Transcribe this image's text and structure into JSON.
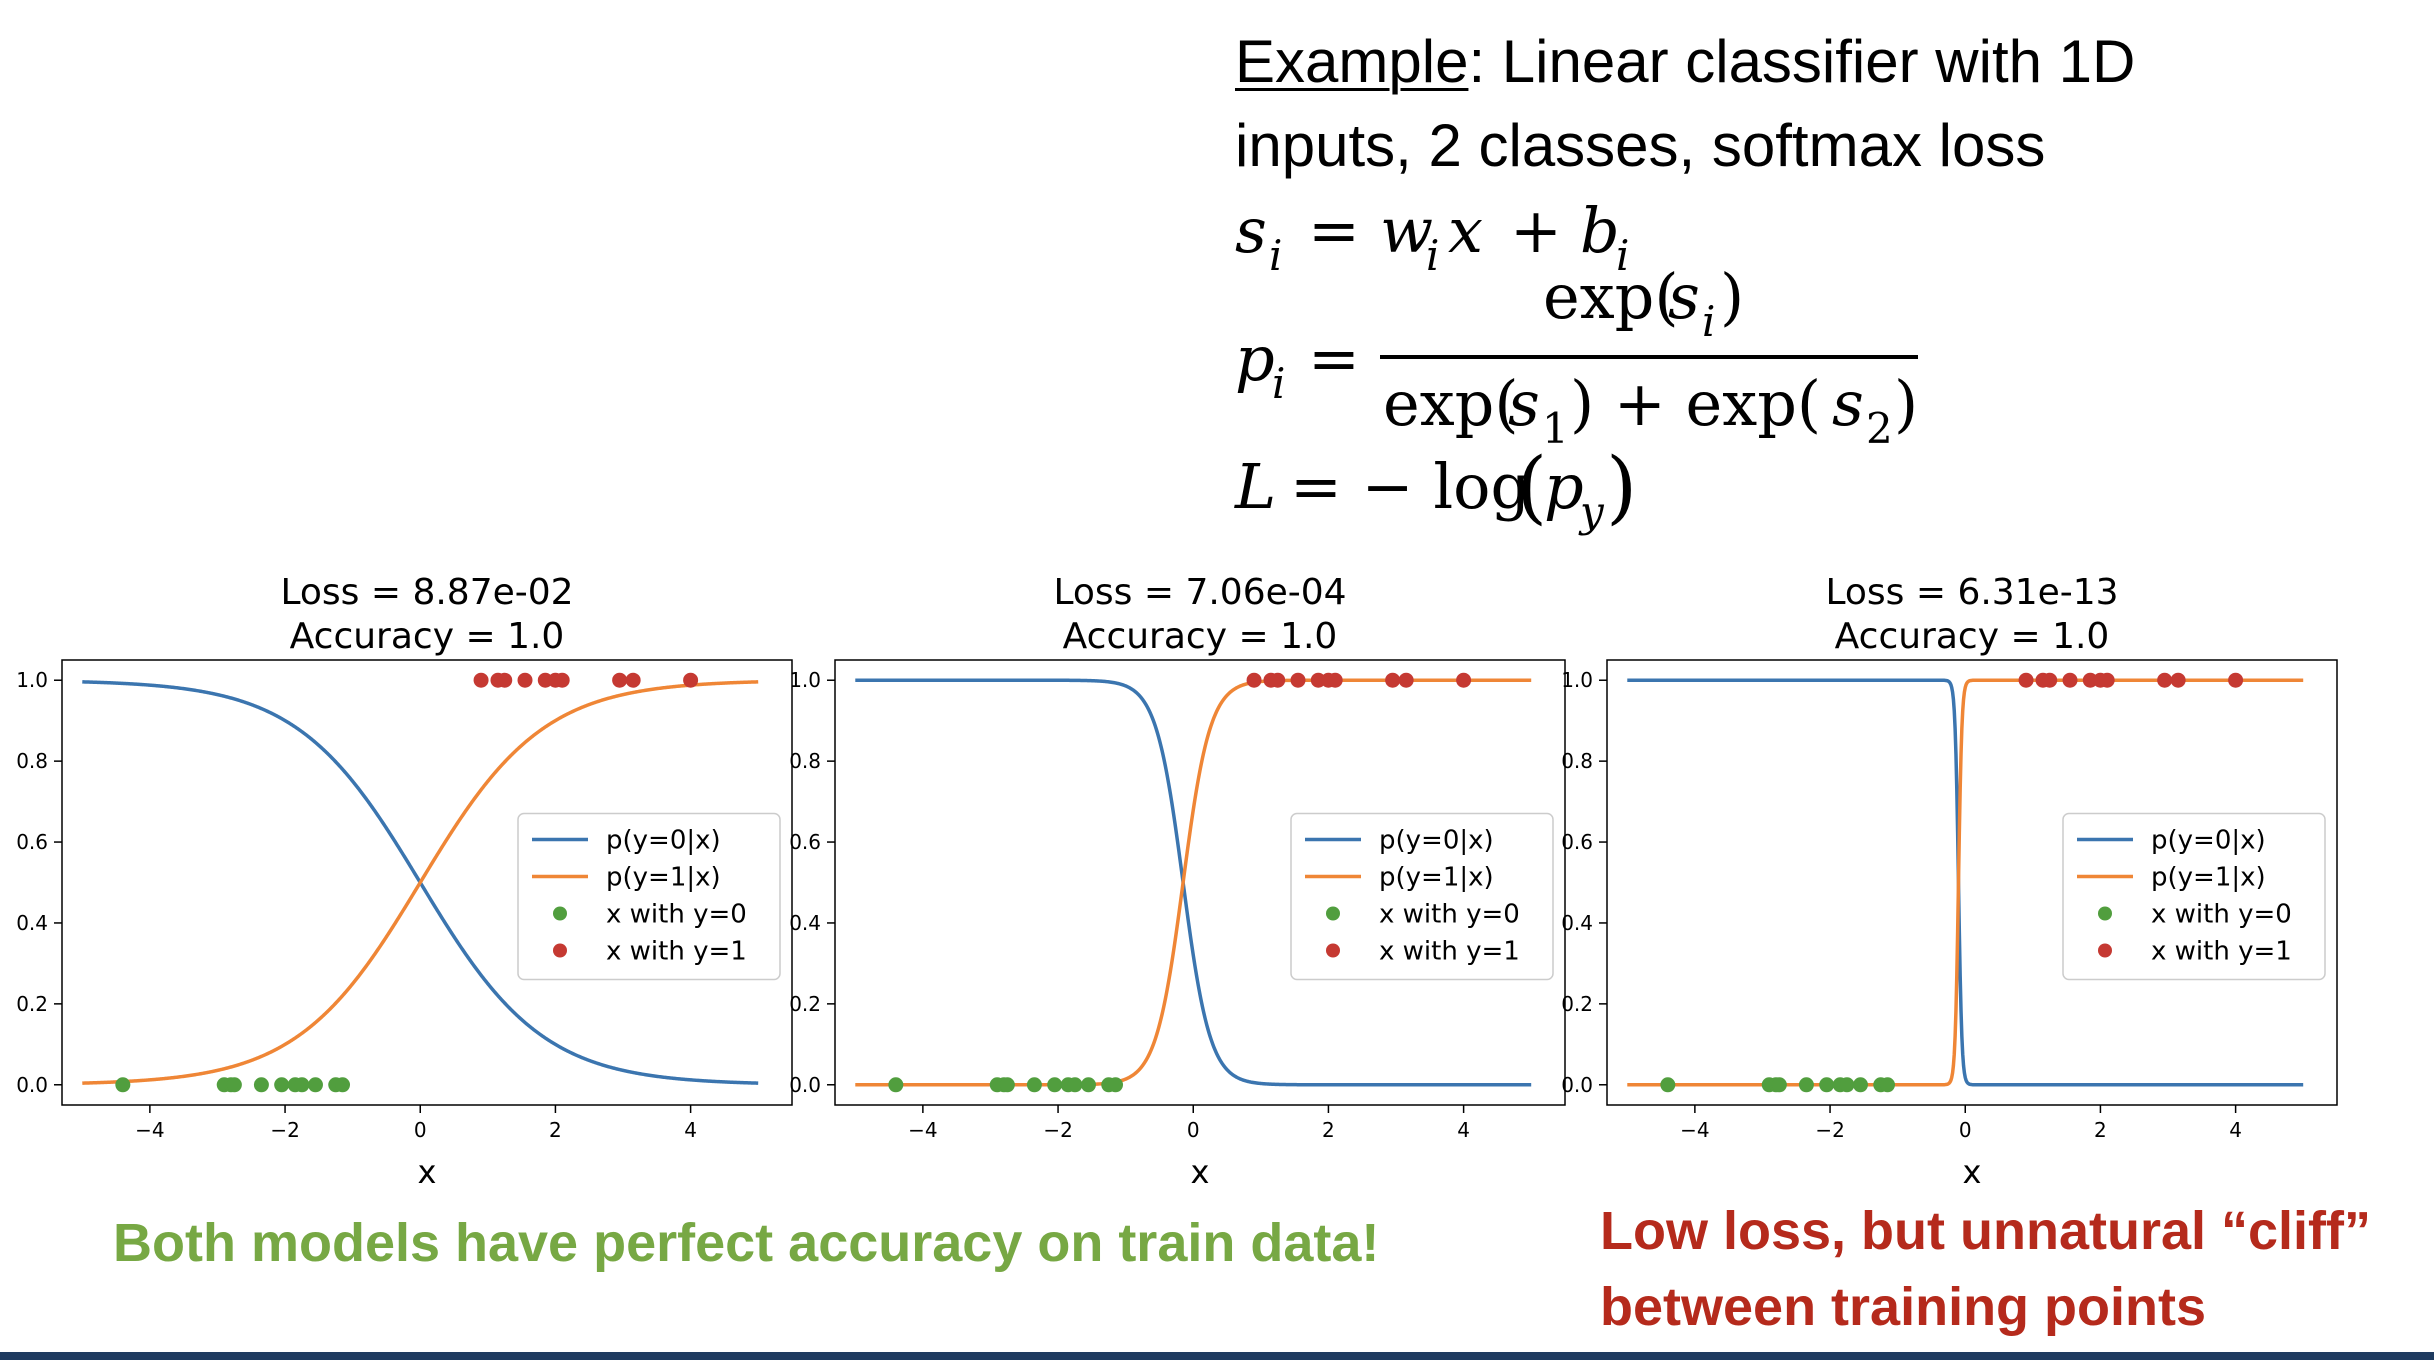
{
  "heading": {
    "label": "Example",
    "rest_line1": ": Linear classifier with 1D",
    "line2": "inputs, 2 classes, softmax loss"
  },
  "equations": {
    "score": {
      "lhs": "s",
      "lhs_sub": "i",
      "eq": "=",
      "w": "w",
      "w_sub": "i",
      "x": "x",
      "plus": "+",
      "b": "b",
      "b_sub": "i"
    },
    "prob": {
      "lhs": "p",
      "lhs_sub": "i",
      "eq": "=",
      "num": "exp(",
      "num_var": "s",
      "num_sub": "i",
      "num_close": ")",
      "den1": "exp(",
      "den1_var": "s",
      "den1_sub": "1",
      "den_mid": ") + exp(",
      "den2_var": "s",
      "den2_sub": "2",
      "den_close": ")"
    },
    "loss": {
      "lhs": "L",
      "eq": "= − log",
      "open": "(",
      "var": "p",
      "sub": "y",
      "close": ")"
    }
  },
  "colors": {
    "p0": "#3b75af",
    "p1": "#ef8636",
    "y0": "#519e3e",
    "y1": "#c53932",
    "green_note": "#77a844",
    "red_note": "#b52a1c"
  },
  "chart_data": [
    {
      "type": "line",
      "title": "Loss = 8.87e-02\nAccuracy = 1.0",
      "title_lines": [
        "Loss = 8.87e-02",
        "Accuracy = 1.0"
      ],
      "xlabel": "x",
      "ylabel": "",
      "xlim": [
        -5.3,
        5.5
      ],
      "ylim": [
        -0.05,
        1.05
      ],
      "xticks": [
        -4,
        -2,
        0,
        2,
        4
      ],
      "yticks": [
        0.0,
        0.2,
        0.4,
        0.6,
        0.8,
        1.0
      ],
      "x_range": [
        -5,
        5
      ],
      "boundary": 0.0,
      "steepness": 1.1,
      "legend_position": "center-right",
      "series": [
        {
          "name": "p(y=0|x)",
          "kind": "line",
          "color": "#3b75af",
          "curve": "decreasing_sigmoid"
        },
        {
          "name": "p(y=1|x)",
          "kind": "line",
          "color": "#ef8636",
          "curve": "increasing_sigmoid"
        },
        {
          "name": "x with y=0",
          "kind": "scatter",
          "color": "#519e3e",
          "y": 0.0,
          "x": [
            -4.4,
            -2.9,
            -2.8,
            -2.75,
            -2.35,
            -2.05,
            -1.85,
            -1.75,
            -1.55,
            -1.25,
            -1.15
          ]
        },
        {
          "name": "x with y=1",
          "kind": "scatter",
          "color": "#c53932",
          "y": 1.0,
          "x": [
            0.9,
            1.15,
            1.25,
            1.55,
            1.85,
            2.0,
            2.1,
            2.95,
            3.15,
            4.0
          ]
        }
      ]
    },
    {
      "type": "line",
      "title": "Loss = 7.06e-04\nAccuracy = 1.0",
      "title_lines": [
        "Loss = 7.06e-04",
        "Accuracy = 1.0"
      ],
      "xlabel": "x",
      "ylabel": "",
      "xlim": [
        -5.3,
        5.5
      ],
      "ylim": [
        -0.05,
        1.05
      ],
      "xticks": [
        -4,
        -2,
        0,
        2,
        4
      ],
      "yticks": [
        0.0,
        0.2,
        0.4,
        0.6,
        0.8,
        1.0
      ],
      "x_range": [
        -5,
        5
      ],
      "boundary": -0.15,
      "steepness": 5.0,
      "legend_position": "center-right",
      "series": [
        {
          "name": "p(y=0|x)",
          "kind": "line",
          "color": "#3b75af",
          "curve": "decreasing_sigmoid"
        },
        {
          "name": "p(y=1|x)",
          "kind": "line",
          "color": "#ef8636",
          "curve": "increasing_sigmoid"
        },
        {
          "name": "x with y=0",
          "kind": "scatter",
          "color": "#519e3e",
          "y": 0.0,
          "x": [
            -4.4,
            -2.9,
            -2.8,
            -2.75,
            -2.35,
            -2.05,
            -1.85,
            -1.75,
            -1.55,
            -1.25,
            -1.15
          ]
        },
        {
          "name": "x with y=1",
          "kind": "scatter",
          "color": "#c53932",
          "y": 1.0,
          "x": [
            0.9,
            1.15,
            1.25,
            1.55,
            1.85,
            2.0,
            2.1,
            2.95,
            3.15,
            4.0
          ]
        }
      ]
    },
    {
      "type": "line",
      "title": "Loss = 6.31e-13\nAccuracy = 1.0",
      "title_lines": [
        "Loss = 6.31e-13",
        "Accuracy = 1.0"
      ],
      "xlabel": "x",
      "ylabel": "",
      "xlim": [
        -5.3,
        5.5
      ],
      "ylim": [
        -0.05,
        1.05
      ],
      "xticks": [
        -4,
        -2,
        0,
        2,
        4
      ],
      "yticks": [
        0.0,
        0.2,
        0.4,
        0.6,
        0.8,
        1.0
      ],
      "x_range": [
        -5,
        5
      ],
      "boundary": -0.1,
      "steepness": 40.0,
      "legend_position": "center-right",
      "series": [
        {
          "name": "p(y=0|x)",
          "kind": "line",
          "color": "#3b75af",
          "curve": "decreasing_sigmoid"
        },
        {
          "name": "p(y=1|x)",
          "kind": "line",
          "color": "#ef8636",
          "curve": "increasing_sigmoid"
        },
        {
          "name": "x with y=0",
          "kind": "scatter",
          "color": "#519e3e",
          "y": 0.0,
          "x": [
            -4.4,
            -2.9,
            -2.8,
            -2.75,
            -2.35,
            -2.05,
            -1.85,
            -1.75,
            -1.55,
            -1.25,
            -1.15
          ]
        },
        {
          "name": "x with y=1",
          "kind": "scatter",
          "color": "#c53932",
          "y": 1.0,
          "x": [
            0.9,
            1.15,
            1.25,
            1.55,
            1.85,
            2.0,
            2.1,
            2.95,
            3.15,
            4.0
          ]
        }
      ]
    }
  ],
  "notes": {
    "green": "Both models have perfect accuracy on train data!",
    "red_line1": "Low loss, but unnatural “cliff”",
    "red_line2": "between training points"
  }
}
